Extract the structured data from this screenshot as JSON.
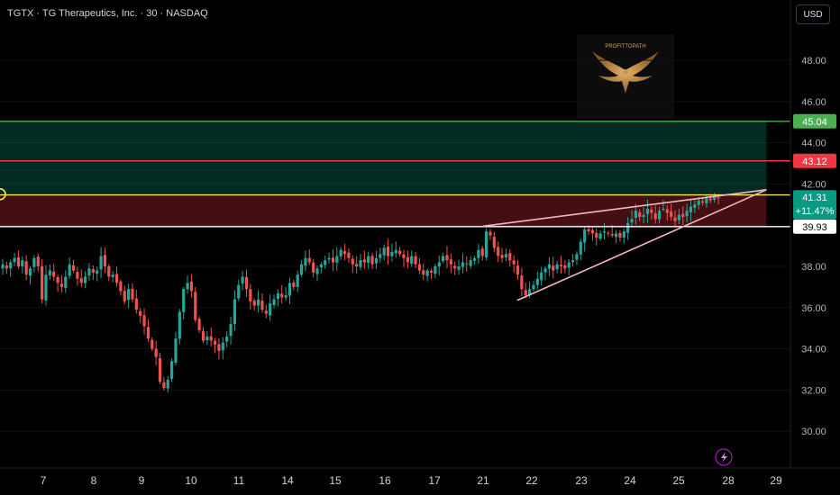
{
  "header": {
    "title": "TGTX · TG Therapeutics, Inc. · 30 · NASDAQ",
    "currency": "USD"
  },
  "watermark": {
    "text": "PROFITTOPATH"
  },
  "colors": {
    "background": "#000000",
    "up": "#26a69a",
    "down": "#ef5350",
    "target_line": "#4caf50",
    "stop_line": "#f23645",
    "entry_line": "#f5e94a",
    "support_line": "#ffffff",
    "wedge": "#f4b6c2"
  },
  "chart_data": {
    "type": "candlestick",
    "x_ticks": [
      "7",
      "8",
      "9",
      "10",
      "11",
      "14",
      "15",
      "16",
      "17",
      "21",
      "22",
      "23",
      "24",
      "25",
      "28",
      "29"
    ],
    "y_ticks": [
      "30.00",
      "32.00",
      "34.00",
      "36.00",
      "38.00",
      "40.00",
      "42.00",
      "44.00",
      "46.00",
      "48.00"
    ],
    "ylim": [
      29.2,
      50.5
    ],
    "price_labels": [
      {
        "value": 45.04,
        "text": "45.04",
        "color": "#4caf50"
      },
      {
        "value": 43.12,
        "text": "43.12",
        "color": "#f23645"
      },
      {
        "value": 41.31,
        "text": "41.31",
        "sub": "+11.47%",
        "color": "#089981"
      },
      {
        "value": 39.93,
        "text": "39.93",
        "color": "#ffffff"
      }
    ],
    "horizontal_lines": [
      {
        "value": 45.04,
        "color": "#4caf50"
      },
      {
        "value": 43.12,
        "color": "#f23645"
      },
      {
        "value": 41.47,
        "color": "#f5e94a"
      },
      {
        "value": 39.93,
        "color": "#ffffff"
      }
    ],
    "wedge": {
      "upper": [
        {
          "date": "21",
          "price": 39.95
        },
        {
          "date": "28.8",
          "price": 41.72
        }
      ],
      "lower": [
        {
          "date": "21.7",
          "price": 36.35
        },
        {
          "date": "28.8",
          "price": 41.72
        }
      ]
    },
    "position": {
      "entry": 41.47,
      "target": 45.04,
      "stop": 39.93,
      "from": "27.8",
      "to": "28.8"
    },
    "marker": {
      "date": "27.9",
      "price": 41.5
    },
    "close": [
      38.1,
      37.9,
      38.2,
      38.4,
      38.0,
      38.3,
      37.6,
      37.9,
      38.4,
      38.0,
      36.4,
      37.6,
      37.8,
      37.5,
      37.2,
      37.0,
      37.5,
      38.1,
      37.8,
      37.4,
      37.2,
      37.5,
      37.9,
      37.7,
      37.8,
      38.5,
      38.0,
      37.5,
      37.6,
      37.2,
      36.8,
      36.3,
      36.9,
      36.4,
      35.9,
      35.6,
      35.1,
      34.5,
      34.0,
      33.6,
      32.4,
      32.1,
      32.5,
      33.4,
      34.5,
      35.8,
      36.9,
      37.2,
      36.8,
      35.4,
      34.9,
      34.4,
      34.6,
      34.4,
      34.2,
      33.9,
      34.3,
      34.6,
      35.2,
      36.4,
      37.1,
      37.5,
      36.9,
      36.3,
      36.1,
      36.4,
      35.9,
      35.7,
      36.2,
      36.4,
      36.7,
      36.5,
      36.6,
      37.2,
      37.0,
      37.6,
      38.1,
      38.4,
      38.2,
      37.7,
      37.9,
      38.1,
      38.3,
      38.4,
      38.2,
      38.5,
      38.8,
      38.6,
      38.4,
      38.1,
      38.0,
      38.3,
      38.2,
      38.5,
      38.1,
      38.4,
      38.6,
      38.9,
      38.5,
      38.7,
      38.8,
      38.6,
      38.4,
      38.2,
      38.5,
      38.1,
      37.8,
      37.6,
      37.8,
      37.7,
      38.0,
      38.2,
      38.5,
      38.3,
      38.1,
      37.9,
      38.0,
      38.2,
      38.1,
      38.3,
      38.4,
      38.8,
      38.5,
      39.7,
      39.5,
      38.9,
      38.5,
      38.4,
      38.6,
      38.3,
      38.1,
      37.6,
      36.9,
      36.6,
      36.9,
      37.1,
      37.4,
      37.7,
      37.9,
      38.1,
      37.8,
      38.1,
      38.0,
      37.9,
      38.2,
      38.3,
      38.6,
      39.2,
      39.8,
      39.7,
      39.6,
      39.4,
      39.6,
      39.7,
      39.6,
      39.5,
      39.6,
      39.4,
      39.7,
      40.1,
      40.3,
      40.7,
      40.4,
      40.5,
      40.8,
      40.6,
      40.3,
      40.7,
      40.8,
      40.6,
      40.4,
      40.2,
      40.5,
      40.4,
      40.7,
      40.9,
      41.0,
      41.2,
      41.1,
      41.3,
      41.2,
      41.4,
      41.31
    ]
  }
}
